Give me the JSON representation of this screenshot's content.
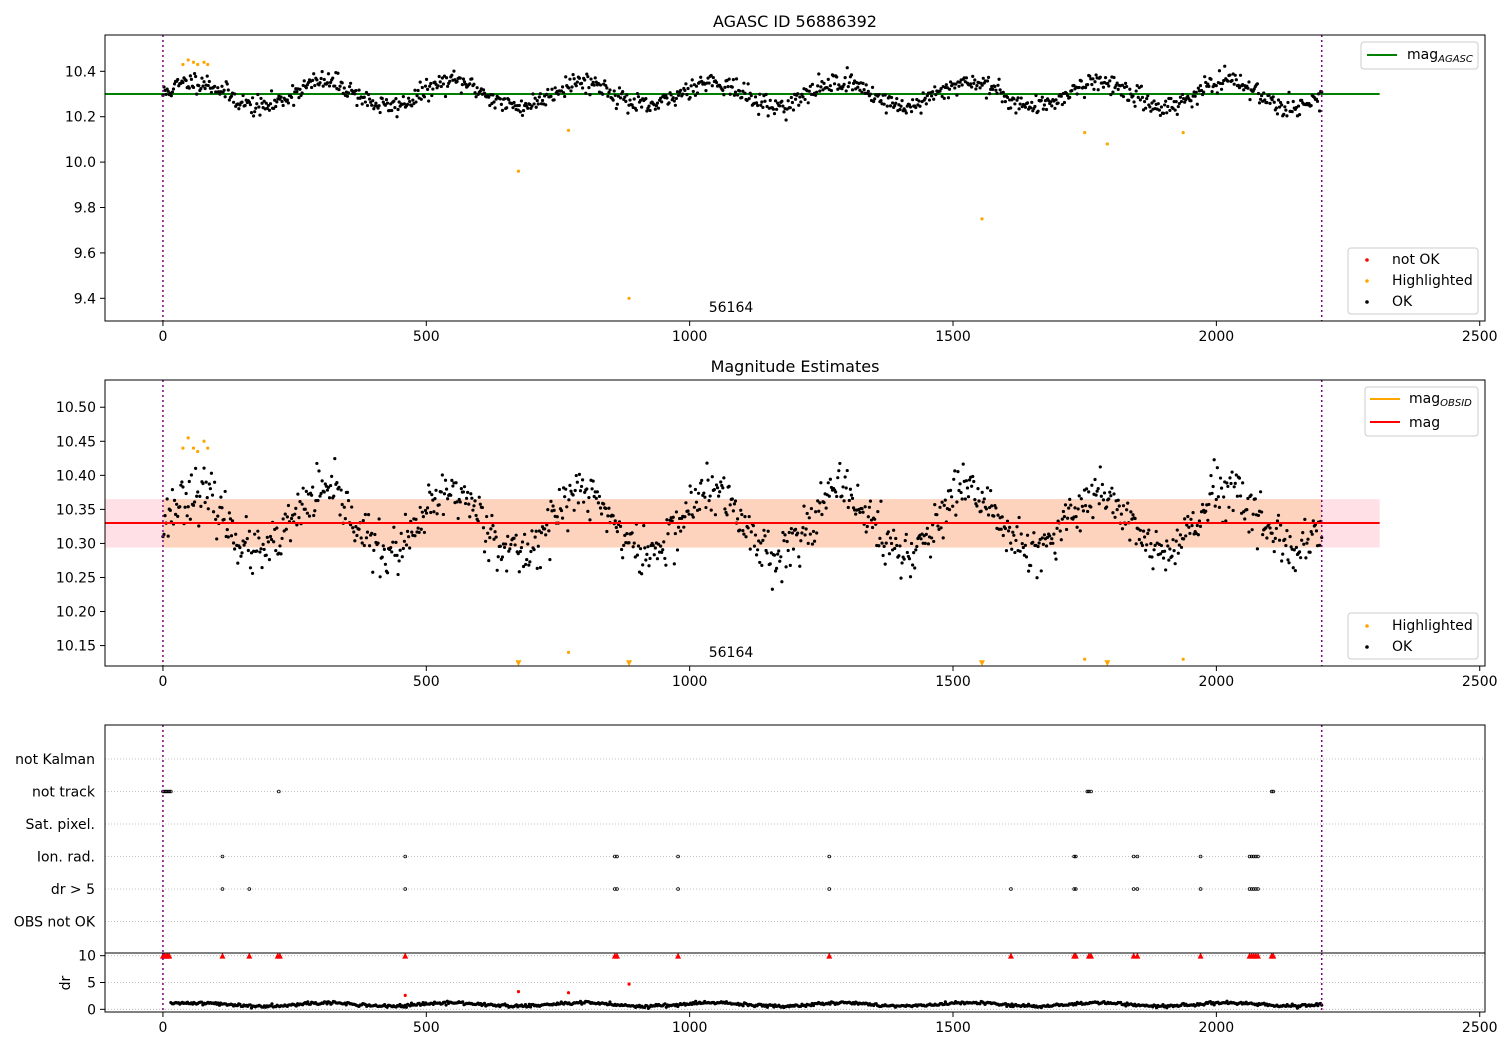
{
  "chart_data": [
    {
      "type": "scatter",
      "title": "AGASC ID 56886392",
      "xlabel": "",
      "ylabel": "",
      "xlim": [
        -110,
        2510
      ],
      "ylim": [
        9.3,
        10.56
      ],
      "xticks": [
        0,
        500,
        1000,
        1500,
        2000,
        2500
      ],
      "yticks": [
        9.4,
        9.6,
        9.8,
        10.0,
        10.2,
        10.4
      ],
      "ytick_labels": [
        "9.4",
        "9.6",
        "9.8",
        "10.0",
        "10.2",
        "10.4"
      ],
      "vlines": [
        0,
        2200
      ],
      "hline": {
        "name": "mag_AGASC",
        "value": 10.3,
        "x_range": [
          -110,
          2310
        ],
        "color": "#008000"
      },
      "annotation": "56164",
      "legend_lines": [
        {
          "name": "mag",
          "sub": "AGASC",
          "color": "#008000"
        }
      ],
      "legend_points": [
        {
          "name": "not OK",
          "color": "#ff0000"
        },
        {
          "name": "Highlighted",
          "color": "#ffa500"
        },
        {
          "name": "OK",
          "color": "#000000"
        }
      ],
      "series": [
        {
          "name": "OK",
          "color": "#000000",
          "pattern": {
            "x_range": [
              0,
              2200
            ],
            "count": 1100,
            "base": 10.3,
            "amplitude": 0.055,
            "period": 245,
            "noise": 0.022
          }
        },
        {
          "name": "Highlighted",
          "color": "#ffa500",
          "x": [
            38,
            48,
            58,
            66,
            78,
            85,
            675,
            770,
            885,
            1555,
            1750,
            1793,
            1937
          ],
          "y": [
            10.43,
            10.45,
            10.44,
            10.43,
            10.44,
            10.43,
            9.96,
            10.14,
            9.4,
            9.75,
            10.13,
            10.08,
            10.13
          ]
        }
      ]
    },
    {
      "type": "scatter",
      "title": "Magnitude Estimates",
      "xlabel": "",
      "ylabel": "",
      "xlim": [
        -110,
        2510
      ],
      "ylim": [
        10.12,
        10.54
      ],
      "xticks": [
        0,
        500,
        1000,
        1500,
        2000,
        2500
      ],
      "yticks": [
        10.15,
        10.2,
        10.25,
        10.3,
        10.35,
        10.4,
        10.45,
        10.5
      ],
      "ytick_labels": [
        "10.15",
        "10.20",
        "10.25",
        "10.30",
        "10.35",
        "10.40",
        "10.45",
        "10.50"
      ],
      "vlines": [
        0,
        2200
      ],
      "hline": {
        "name": "mag",
        "value": 10.33,
        "x_range": [
          -110,
          2310
        ],
        "color": "#ff0000"
      },
      "band_outer": {
        "y": [
          10.294,
          10.365
        ],
        "x_range": [
          -110,
          2310
        ],
        "color": "#ffe0e6"
      },
      "band_inner": {
        "y": [
          10.294,
          10.365
        ],
        "x_range": [
          0,
          2200
        ],
        "color": "#fdd3bd"
      },
      "annotation": "56164",
      "legend_lines": [
        {
          "name": "mag",
          "sub": "OBSID",
          "color": "#ffa500"
        },
        {
          "name": "mag",
          "sub": "",
          "color": "#ff0000"
        }
      ],
      "legend_points": [
        {
          "name": "Highlighted",
          "color": "#ffa500"
        },
        {
          "name": "OK",
          "color": "#000000"
        }
      ],
      "series": [
        {
          "name": "OK",
          "color": "#000000",
          "pattern": {
            "x_range": [
              0,
              2200
            ],
            "count": 1100,
            "base": 10.33,
            "amplitude": 0.045,
            "period": 245,
            "noise": 0.018
          }
        },
        {
          "name": "Highlighted",
          "color": "#ffa500",
          "x": [
            38,
            48,
            58,
            66,
            78,
            85,
            770,
            1750,
            1937
          ],
          "y": [
            10.44,
            10.455,
            10.44,
            10.435,
            10.45,
            10.44,
            10.14,
            10.13,
            10.13
          ]
        },
        {
          "name": "Highlighted (off scale)",
          "color": "#ffa500",
          "marker": "triangle-down",
          "x": [
            675,
            885,
            1555,
            1793
          ],
          "y": [
            10.124,
            10.124,
            10.124,
            10.124
          ]
        }
      ]
    },
    {
      "type": "scatter",
      "title": "",
      "xlim": [
        -110,
        2510
      ],
      "vlines": [
        0,
        2200
      ],
      "categories": [
        "not Kalman",
        "not track",
        "Sat. pixel.",
        "Ion. rad.",
        "dr > 5",
        "OBS not OK"
      ],
      "flags": [
        {
          "category": "not track",
          "x": [
            0,
            3,
            6,
            9,
            12,
            15,
            220,
            1755,
            1758,
            1762,
            2105,
            2108
          ]
        },
        {
          "category": "Ion. rad.",
          "x": [
            113,
            460,
            858,
            862,
            978,
            1265,
            1730,
            1733,
            1843,
            1850,
            1970,
            2063,
            2067,
            2071,
            2075,
            2079
          ]
        },
        {
          "category": "dr > 5",
          "x": [
            113,
            164,
            460,
            858,
            862,
            978,
            1265,
            1610,
            1730,
            1733,
            1843,
            1850,
            1970,
            2063,
            2067,
            2071,
            2075,
            2079
          ]
        }
      ]
    },
    {
      "type": "scatter",
      "title": "",
      "ylabel": "dr",
      "xlim": [
        -110,
        2510
      ],
      "ylim": [
        -0.5,
        10.5
      ],
      "xticks": [
        0,
        500,
        1000,
        1500,
        2000,
        2500
      ],
      "yticks": [
        0,
        5,
        10
      ],
      "ytick_labels": [
        "0",
        "5",
        "10"
      ],
      "vlines": [
        0,
        2200
      ],
      "series": [
        {
          "name": "OK",
          "color": "#000000",
          "pattern": {
            "x_range": [
              15,
              2200
            ],
            "count": 900,
            "base": 0.9,
            "amplitude": 0.3,
            "period": 245,
            "noise": 0.15
          }
        },
        {
          "name": "dr",
          "color": "#ff0000",
          "x": [
            675,
            770,
            885,
            460
          ],
          "y": [
            3.3,
            3.1,
            4.7,
            2.6
          ]
        },
        {
          "name": "dr > 5 (capped)",
          "color": "#ff0000",
          "marker": "triangle-up",
          "x": [
            0,
            3,
            6,
            9,
            12,
            113,
            164,
            218,
            222,
            460,
            858,
            862,
            978,
            1265,
            1610,
            1730,
            1733,
            1758,
            1762,
            1843,
            1850,
            1970,
            2063,
            2067,
            2071,
            2075,
            2079,
            2105,
            2108
          ],
          "y": [
            10,
            10,
            10,
            10,
            10,
            10,
            10,
            10,
            10,
            10,
            10,
            10,
            10,
            10,
            10,
            10,
            10,
            10,
            10,
            10,
            10,
            10,
            10,
            10,
            10,
            10,
            10,
            10,
            10
          ]
        }
      ]
    }
  ]
}
